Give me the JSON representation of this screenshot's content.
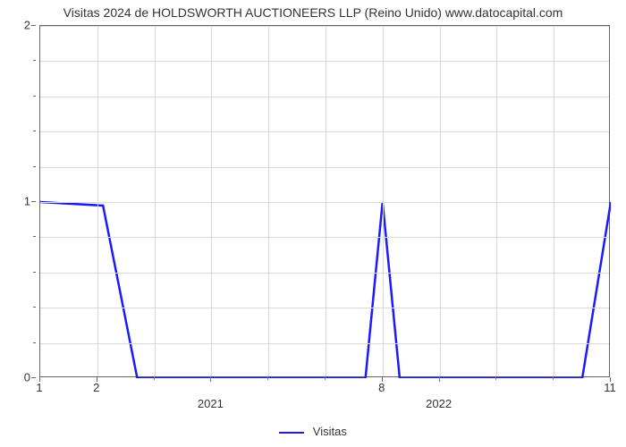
{
  "chart": {
    "type": "line",
    "title": "Visitas 2024 de HOLDSWORTH AUCTIONEERS LLP (Reino Unido) www.datocapital.com",
    "title_fontsize": 14,
    "title_color": "#333333",
    "background_color": "#ffffff",
    "grid_color": "#d9d9d9",
    "axis_color": "#666666",
    "series": [
      {
        "name": "Visitas",
        "color": "#1a1aff",
        "line_width": 2.5,
        "x": [
          1,
          2.1,
          2.7,
          6.7,
          7.0,
          7.3,
          10.5,
          11.0
        ],
        "y": [
          1,
          0.98,
          0,
          0,
          1,
          0,
          0,
          1
        ]
      }
    ],
    "ylim": [
      0,
      2
    ],
    "y_major_ticks": [
      0,
      1,
      2
    ],
    "y_minor_count_between": 4,
    "xlim": [
      1,
      11
    ],
    "x_major_ticks": [
      {
        "pos": 1,
        "label": "1"
      },
      {
        "pos": 2,
        "label": "2"
      },
      {
        "pos": 7,
        "label": "8"
      },
      {
        "pos": 11,
        "label": "11"
      }
    ],
    "x_year_ticks": [
      {
        "pos": 4.0,
        "label": "2021"
      },
      {
        "pos": 8.0,
        "label": "2022"
      }
    ],
    "x_minor_ticks": [
      3,
      4,
      5,
      6,
      8,
      9,
      10
    ],
    "legend": {
      "label": "Visitas",
      "position": "bottom-center"
    },
    "label_fontsize": 13
  }
}
